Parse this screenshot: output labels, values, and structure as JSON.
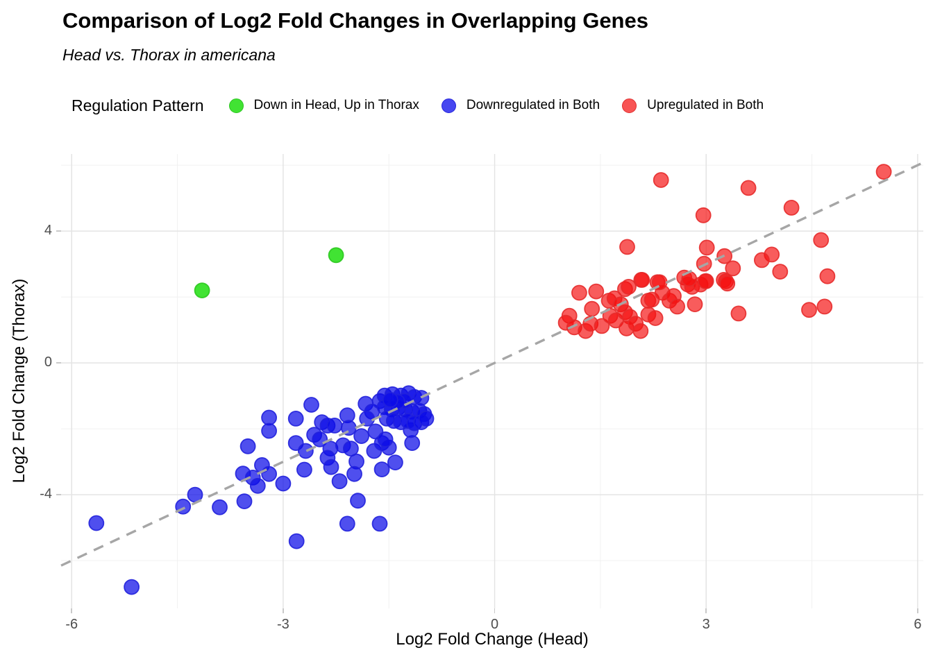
{
  "header": {
    "title": "Comparison of Log2 Fold Changes in Overlapping Genes",
    "subtitle": "Head vs. Thorax in americana"
  },
  "legend": {
    "title": "Regulation Pattern",
    "items": [
      {
        "label": "Down in Head, Up in Thorax",
        "color": "#41E333",
        "stroke": "#2CC521"
      },
      {
        "label": "Downregulated in Both",
        "color": "#4747F0",
        "stroke": "#2424DC"
      },
      {
        "label": "Upregulated in Both",
        "color": "#F85454",
        "stroke": "#E03030"
      }
    ]
  },
  "chart_data": {
    "type": "scatter",
    "title": "Comparison of Log2 Fold Changes in Overlapping Genes",
    "subtitle": "Head vs. Thorax in americana",
    "xlabel": "Log2 Fold Change (Head)",
    "ylabel": "Log2 Fold Change (Thorax)",
    "x_ticks": [
      -6,
      -3,
      0,
      3,
      6
    ],
    "y_ticks": [
      -4,
      0,
      4
    ],
    "x_minor": [
      -4.5,
      -1.5,
      1.5,
      4.5
    ],
    "y_minor": [
      -6,
      -2,
      2,
      6
    ],
    "x_range": [
      -6.15,
      6.08
    ],
    "y_range": [
      -7.45,
      6.34
    ],
    "grid": true,
    "legend_position": "top",
    "reference_line": {
      "equation": "y = x",
      "style": "dashed",
      "color": "#A6A6A6"
    },
    "point_radius_px": 10.5,
    "series": [
      {
        "name": "Down in Head, Up in Thorax",
        "fill": "#12DC00",
        "stroke": "#2BC81E",
        "fill_opacity": 0.8,
        "points": [
          [
            -4.15,
            2.2
          ],
          [
            -2.25,
            3.27
          ]
        ]
      },
      {
        "name": "Downregulated in Both",
        "fill": "#0B0BE8",
        "stroke": "#2121DC",
        "fill_opacity": 0.72,
        "points": [
          [
            -5.65,
            -4.86
          ],
          [
            -5.15,
            -6.8
          ],
          [
            -4.42,
            -4.36
          ],
          [
            -4.25,
            -4.0
          ],
          [
            -3.9,
            -4.38
          ],
          [
            -3.2,
            -1.66
          ],
          [
            -3.2,
            -2.06
          ],
          [
            -3.5,
            -2.53
          ],
          [
            -3.3,
            -3.1
          ],
          [
            -3.57,
            -3.36
          ],
          [
            -3.43,
            -3.48
          ],
          [
            -3.2,
            -3.37
          ],
          [
            -3.36,
            -3.73
          ],
          [
            -3.0,
            -3.66
          ],
          [
            -3.55,
            -4.2
          ],
          [
            -2.6,
            -1.27
          ],
          [
            -2.82,
            -1.69
          ],
          [
            -2.82,
            -2.43
          ],
          [
            -2.68,
            -2.67
          ],
          [
            -2.7,
            -3.24
          ],
          [
            -2.56,
            -2.18
          ],
          [
            -2.45,
            -1.8
          ],
          [
            -2.37,
            -1.9
          ],
          [
            -2.48,
            -2.32
          ],
          [
            -2.33,
            -2.6
          ],
          [
            -2.37,
            -2.88
          ],
          [
            -2.32,
            -3.16
          ],
          [
            -2.27,
            -1.9
          ],
          [
            -2.2,
            -3.59
          ],
          [
            -2.09,
            -1.59
          ],
          [
            -2.07,
            -1.97
          ],
          [
            -2.15,
            -2.5
          ],
          [
            -2.04,
            -2.6
          ],
          [
            -1.96,
            -2.99
          ],
          [
            -1.99,
            -3.37
          ],
          [
            -1.89,
            -2.22
          ],
          [
            -1.69,
            -2.08
          ],
          [
            -1.71,
            -2.67
          ],
          [
            -1.6,
            -2.43
          ],
          [
            -1.5,
            -2.57
          ],
          [
            -1.6,
            -3.23
          ],
          [
            -1.41,
            -3.02
          ],
          [
            -1.17,
            -2.43
          ],
          [
            -1.19,
            -2.04
          ],
          [
            -1.55,
            -2.32
          ],
          [
            -1.94,
            -4.18
          ],
          [
            -2.09,
            -4.88
          ],
          [
            -1.63,
            -4.88
          ],
          [
            -2.81,
            -5.41
          ],
          [
            -1.83,
            -1.24
          ],
          [
            -1.74,
            -1.48
          ],
          [
            -1.81,
            -1.69
          ],
          [
            -1.63,
            -1.16
          ],
          [
            -1.56,
            -0.99
          ],
          [
            -1.45,
            -0.95
          ],
          [
            -1.33,
            -0.99
          ],
          [
            -1.22,
            -0.92
          ],
          [
            -1.14,
            -1.03
          ],
          [
            -1.04,
            -1.06
          ],
          [
            -1.56,
            -1.34
          ],
          [
            -1.46,
            -1.41
          ],
          [
            -1.37,
            -1.37
          ],
          [
            -1.27,
            -1.41
          ],
          [
            -1.17,
            -1.48
          ],
          [
            -1.07,
            -1.45
          ],
          [
            -1.0,
            -1.55
          ],
          [
            -1.53,
            -1.69
          ],
          [
            -1.43,
            -1.76
          ],
          [
            -1.33,
            -1.8
          ],
          [
            -1.23,
            -1.76
          ],
          [
            -1.14,
            -1.83
          ],
          [
            -1.04,
            -1.8
          ],
          [
            -0.97,
            -1.69
          ],
          [
            -1.28,
            -1.15
          ],
          [
            -1.38,
            -1.18
          ],
          [
            -1.48,
            -1.12
          ]
        ]
      },
      {
        "name": "Upregulated in Both",
        "fill": "#F50F0F",
        "stroke": "#E62B2B",
        "fill_opacity": 0.68,
        "points": [
          [
            1.2,
            2.13
          ],
          [
            1.44,
            2.17
          ],
          [
            1.06,
            1.43
          ],
          [
            1.01,
            1.22
          ],
          [
            1.13,
            1.08
          ],
          [
            1.29,
            0.97
          ],
          [
            1.38,
            1.64
          ],
          [
            1.36,
            1.19
          ],
          [
            1.52,
            1.12
          ],
          [
            1.62,
            1.89
          ],
          [
            1.7,
            1.96
          ],
          [
            1.79,
            1.78
          ],
          [
            1.64,
            1.43
          ],
          [
            1.72,
            1.29
          ],
          [
            1.85,
            2.24
          ],
          [
            1.9,
            2.31
          ],
          [
            2.08,
            2.52
          ],
          [
            1.85,
            1.54
          ],
          [
            1.92,
            1.4
          ],
          [
            1.87,
            1.05
          ],
          [
            2.0,
            1.19
          ],
          [
            2.07,
            0.97
          ],
          [
            2.18,
            1.89
          ],
          [
            2.23,
            1.92
          ],
          [
            2.18,
            1.47
          ],
          [
            2.28,
            1.36
          ],
          [
            2.31,
            2.45
          ],
          [
            2.38,
            2.13
          ],
          [
            2.48,
            1.89
          ],
          [
            2.54,
            2.03
          ],
          [
            2.59,
            1.71
          ],
          [
            2.69,
            2.59
          ],
          [
            2.74,
            2.38
          ],
          [
            2.8,
            2.31
          ],
          [
            2.92,
            2.38
          ],
          [
            3.0,
            2.48
          ],
          [
            2.84,
            1.78
          ],
          [
            3.25,
            2.52
          ],
          [
            2.36,
            5.55
          ],
          [
            3.6,
            5.31
          ],
          [
            4.21,
            4.71
          ],
          [
            5.52,
            5.8
          ],
          [
            2.96,
            4.48
          ],
          [
            1.88,
            3.52
          ],
          [
            4.63,
            3.73
          ],
          [
            3.01,
            3.5
          ],
          [
            3.26,
            3.24
          ],
          [
            3.38,
            2.87
          ],
          [
            3.93,
            3.29
          ],
          [
            3.79,
            3.12
          ],
          [
            4.05,
            2.77
          ],
          [
            4.72,
            2.63
          ],
          [
            2.97,
            3.01
          ],
          [
            2.76,
            2.55
          ],
          [
            2.09,
            2.52
          ],
          [
            2.34,
            2.45
          ],
          [
            2.99,
            2.48
          ],
          [
            3.28,
            2.48
          ],
          [
            3.3,
            2.41
          ],
          [
            3.46,
            1.5
          ],
          [
            4.46,
            1.61
          ],
          [
            4.68,
            1.71
          ]
        ]
      }
    ]
  }
}
